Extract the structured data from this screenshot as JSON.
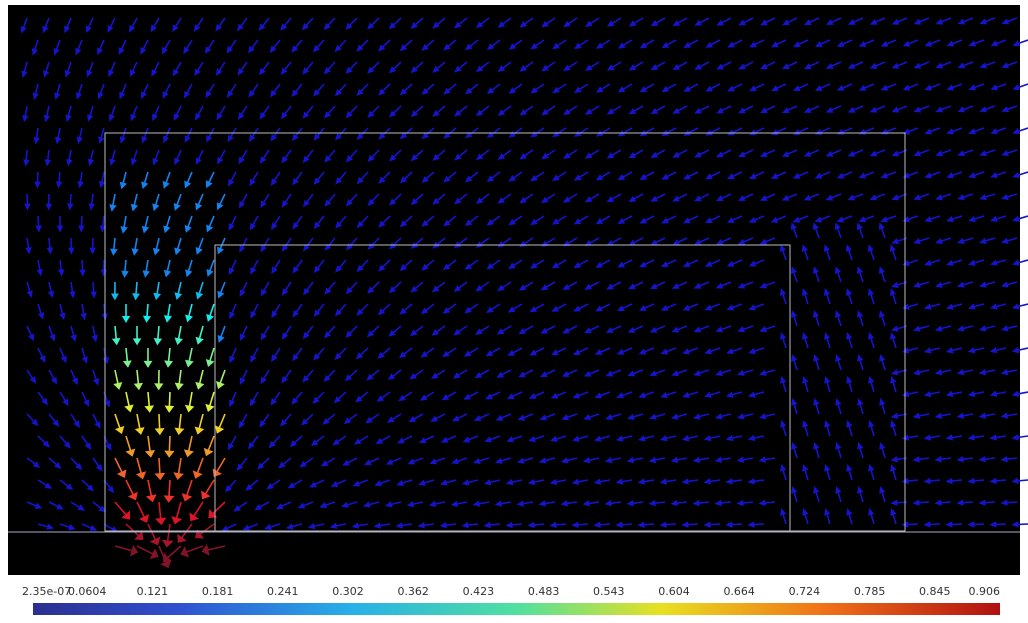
{
  "colorbar": {
    "labels": [
      "2.35e-07",
      "0.0604",
      "0.121",
      "0.181",
      "0.241",
      "0.302",
      "0.362",
      "0.423",
      "0.483",
      "0.543",
      "0.604",
      "0.664",
      "0.724",
      "0.785",
      "0.845",
      "0.906"
    ]
  }
}
